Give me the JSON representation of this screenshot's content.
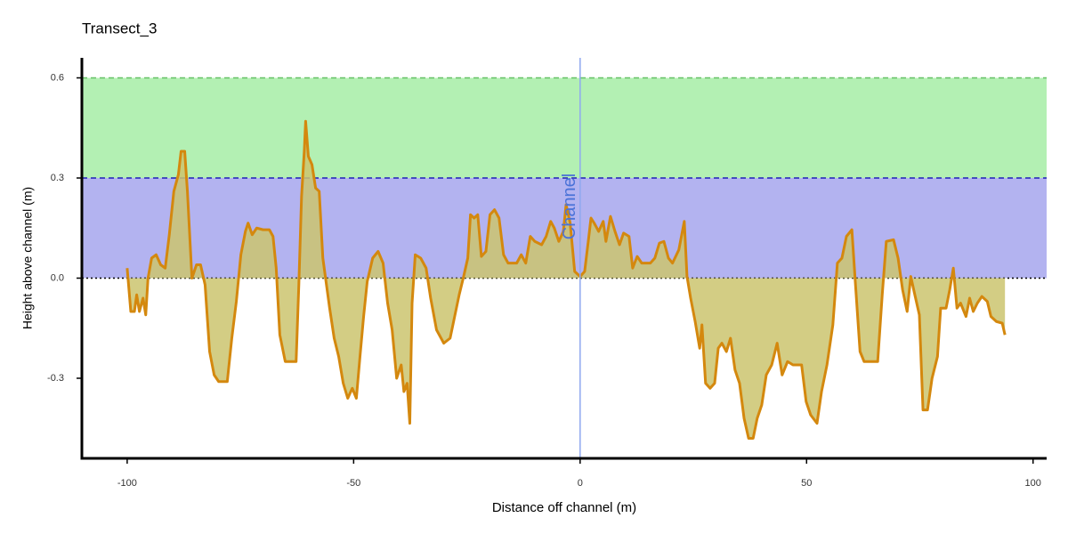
{
  "chart_data": {
    "type": "area",
    "title": "Transect_3",
    "x_label": "Distance off channel (m)",
    "y_label": "Height above channel (m)",
    "line_color": "#d4880e",
    "fill_color": "#cbc46e",
    "xlim": [
      -110,
      103
    ],
    "ylim": [
      -0.54,
      0.66
    ],
    "xticks": [
      -100,
      -50,
      0,
      50,
      100
    ],
    "yticks": [
      -0.3,
      {
        "value": 0,
        "label": "0.0"
      },
      0.3,
      0.6
    ],
    "bands": [
      {
        "from": 0.3,
        "to": 0.6,
        "color": "#b3f0b3"
      },
      {
        "from": 0,
        "to": 0.3,
        "color": "#b3b3f0"
      }
    ],
    "reference_lines": [
      {
        "y": 0.6,
        "color": "#66c266",
        "style": "dashed"
      },
      {
        "y": 0.3,
        "color": "#1f1fb8",
        "style": "dashed"
      },
      {
        "y": 0,
        "color": "#000000",
        "style": "dotted"
      }
    ],
    "annotation": {
      "text": "Channel",
      "x": 0,
      "color": "#4a72d8",
      "line_color": "#8fa8f0"
    },
    "x": [
      -100,
      -99.2,
      -98.4,
      -97.9,
      -97.3,
      -96.5,
      -95.9,
      -95.4,
      -94.6,
      -93.6,
      -92.6,
      -91.6,
      -90.7,
      -89.7,
      -88.7,
      -88.1,
      -87.3,
      -86.7,
      -85.7,
      -84.7,
      -83.8,
      -82.8,
      -81.8,
      -80.8,
      -79.8,
      -77.9,
      -76.9,
      -75.9,
      -74.9,
      -73.9,
      -73.3,
      -72.4,
      -71.4,
      -70.0,
      -68.6,
      -67.8,
      -67.1,
      -66.3,
      -65.1,
      -62.7,
      -62.1,
      -61.5,
      -60.9,
      -60.6,
      -60.0,
      -59.2,
      -58.4,
      -57.6,
      -56.8,
      -56.0,
      -55.3,
      -54.3,
      -53.3,
      -52.3,
      -51.3,
      -50.3,
      -49.4,
      -48.6,
      -47.8,
      -47.0,
      -45.8,
      -44.6,
      -43.5,
      -42.5,
      -41.5,
      -40.5,
      -39.5,
      -38.9,
      -38.2,
      -37.6,
      -37.1,
      -36.4,
      -35.2,
      -34.0,
      -33.0,
      -31.7,
      -30.1,
      -28.7,
      -27.7,
      -26.7,
      -25.8,
      -24.8,
      -24.2,
      -23.4,
      -22.6,
      -21.8,
      -20.8,
      -19.9,
      -18.9,
      -17.9,
      -16.9,
      -15.9,
      -14.0,
      -13.0,
      -12.0,
      -11.0,
      -10.0,
      -8.5,
      -7.5,
      -6.5,
      -5.7,
      -4.7,
      -3.7,
      -3.1,
      -2.2,
      -1.2,
      0,
      1.0,
      1.8,
      2.4,
      3.1,
      4.1,
      5.1,
      5.7,
      6.7,
      7.7,
      8.7,
      9.6,
      10.8,
      11.6,
      12.6,
      13.6,
      15.5,
      16.5,
      17.5,
      18.5,
      19.5,
      20.4,
      21.8,
      23.0,
      23.6,
      24.4,
      25.4,
      26.4,
      26.9,
      27.7,
      28.7,
      29.7,
      30.5,
      31.3,
      32.3,
      33.2,
      34.2,
      35.2,
      36.2,
      37.2,
      38.2,
      39.1,
      40.1,
      41.1,
      42.3,
      43.5,
      44.6,
      45.8,
      47.0,
      48.9,
      49.9,
      50.9,
      52.3,
      53.3,
      54.5,
      55.8,
      56.8,
      57.8,
      58.8,
      60.0,
      60.8,
      61.8,
      62.7,
      65.7,
      66.7,
      67.6,
      69.2,
      70.2,
      71.2,
      72.2,
      73.0,
      73.9,
      74.9,
      75.7,
      76.7,
      77.7,
      78.9,
      79.6,
      80.8,
      81.6,
      82.4,
      83.2,
      84.0,
      85.2,
      86.0,
      86.8,
      87.7,
      88.7,
      89.9,
      90.7,
      91.9,
      93.2,
      93.8
    ],
    "values": [
      0.03,
      -0.1,
      -0.1,
      -0.05,
      -0.1,
      -0.06,
      -0.11,
      0.0,
      0.06,
      0.07,
      0.04,
      0.03,
      0.13,
      0.26,
      0.31,
      0.38,
      0.38,
      0.26,
      0.0,
      0.04,
      0.04,
      -0.02,
      -0.22,
      -0.29,
      -0.31,
      -0.31,
      -0.18,
      -0.07,
      0.07,
      0.14,
      0.165,
      0.13,
      0.15,
      0.145,
      0.145,
      0.125,
      0.03,
      -0.17,
      -0.25,
      -0.25,
      -0.02,
      0.245,
      0.38,
      0.47,
      0.365,
      0.34,
      0.27,
      0.26,
      0.06,
      -0.02,
      -0.09,
      -0.18,
      -0.235,
      -0.315,
      -0.36,
      -0.33,
      -0.36,
      -0.235,
      -0.115,
      -0.01,
      0.06,
      0.08,
      0.045,
      -0.075,
      -0.155,
      -0.3,
      -0.26,
      -0.34,
      -0.315,
      -0.435,
      -0.075,
      0.07,
      0.06,
      0.03,
      -0.06,
      -0.155,
      -0.195,
      -0.18,
      -0.115,
      -0.05,
      0.0,
      0.06,
      0.19,
      0.18,
      0.19,
      0.065,
      0.08,
      0.19,
      0.205,
      0.18,
      0.07,
      0.045,
      0.045,
      0.07,
      0.045,
      0.125,
      0.11,
      0.1,
      0.125,
      0.17,
      0.15,
      0.11,
      0.14,
      0.22,
      0.165,
      0.02,
      0.005,
      0.02,
      0.11,
      0.18,
      0.165,
      0.14,
      0.17,
      0.11,
      0.185,
      0.14,
      0.1,
      0.135,
      0.125,
      0.03,
      0.065,
      0.045,
      0.045,
      0.06,
      0.105,
      0.11,
      0.06,
      0.045,
      0.085,
      0.17,
      0.005,
      -0.06,
      -0.13,
      -0.21,
      -0.14,
      -0.315,
      -0.33,
      -0.315,
      -0.21,
      -0.195,
      -0.22,
      -0.18,
      -0.275,
      -0.315,
      -0.42,
      -0.48,
      -0.48,
      -0.42,
      -0.38,
      -0.29,
      -0.26,
      -0.195,
      -0.29,
      -0.25,
      -0.26,
      -0.26,
      -0.37,
      -0.41,
      -0.435,
      -0.34,
      -0.26,
      -0.14,
      0.045,
      0.06,
      0.125,
      0.145,
      -0.02,
      -0.22,
      -0.25,
      -0.25,
      -0.05,
      0.11,
      0.115,
      0.06,
      -0.035,
      -0.1,
      0.005,
      -0.05,
      -0.11,
      -0.395,
      -0.395,
      -0.3,
      -0.235,
      -0.09,
      -0.09,
      -0.035,
      0.03,
      -0.09,
      -0.075,
      -0.115,
      -0.06,
      -0.1,
      -0.075,
      -0.055,
      -0.07,
      -0.115,
      -0.13,
      -0.135,
      -0.17
    ]
  }
}
